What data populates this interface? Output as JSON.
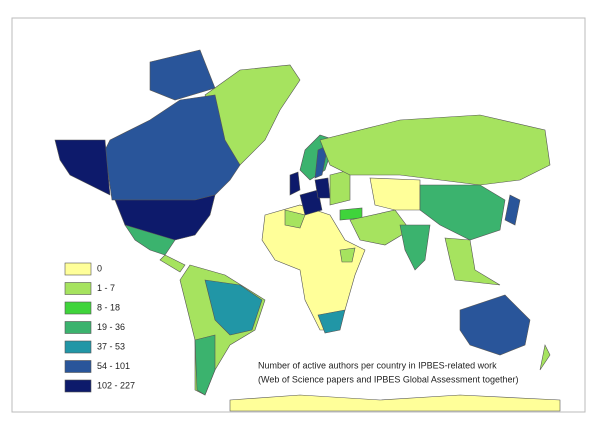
{
  "legend": {
    "items": [
      {
        "label": "0",
        "color": "#ffff99"
      },
      {
        "label": "1 - 7",
        "color": "#a6e35f"
      },
      {
        "label": "8 - 18",
        "color": "#3fd43b"
      },
      {
        "label": "19 - 36",
        "color": "#3bb36e"
      },
      {
        "label": "37 - 53",
        "color": "#2196a6"
      },
      {
        "label": "54 - 101",
        "color": "#29559a"
      },
      {
        "label": "102 - 227",
        "color": "#0d1a6b"
      }
    ]
  },
  "caption": {
    "line1": "Number of active authors per country in IPBES-related work",
    "line2": "(Web of Science papers and IPBES Global Assessment together)"
  }
}
